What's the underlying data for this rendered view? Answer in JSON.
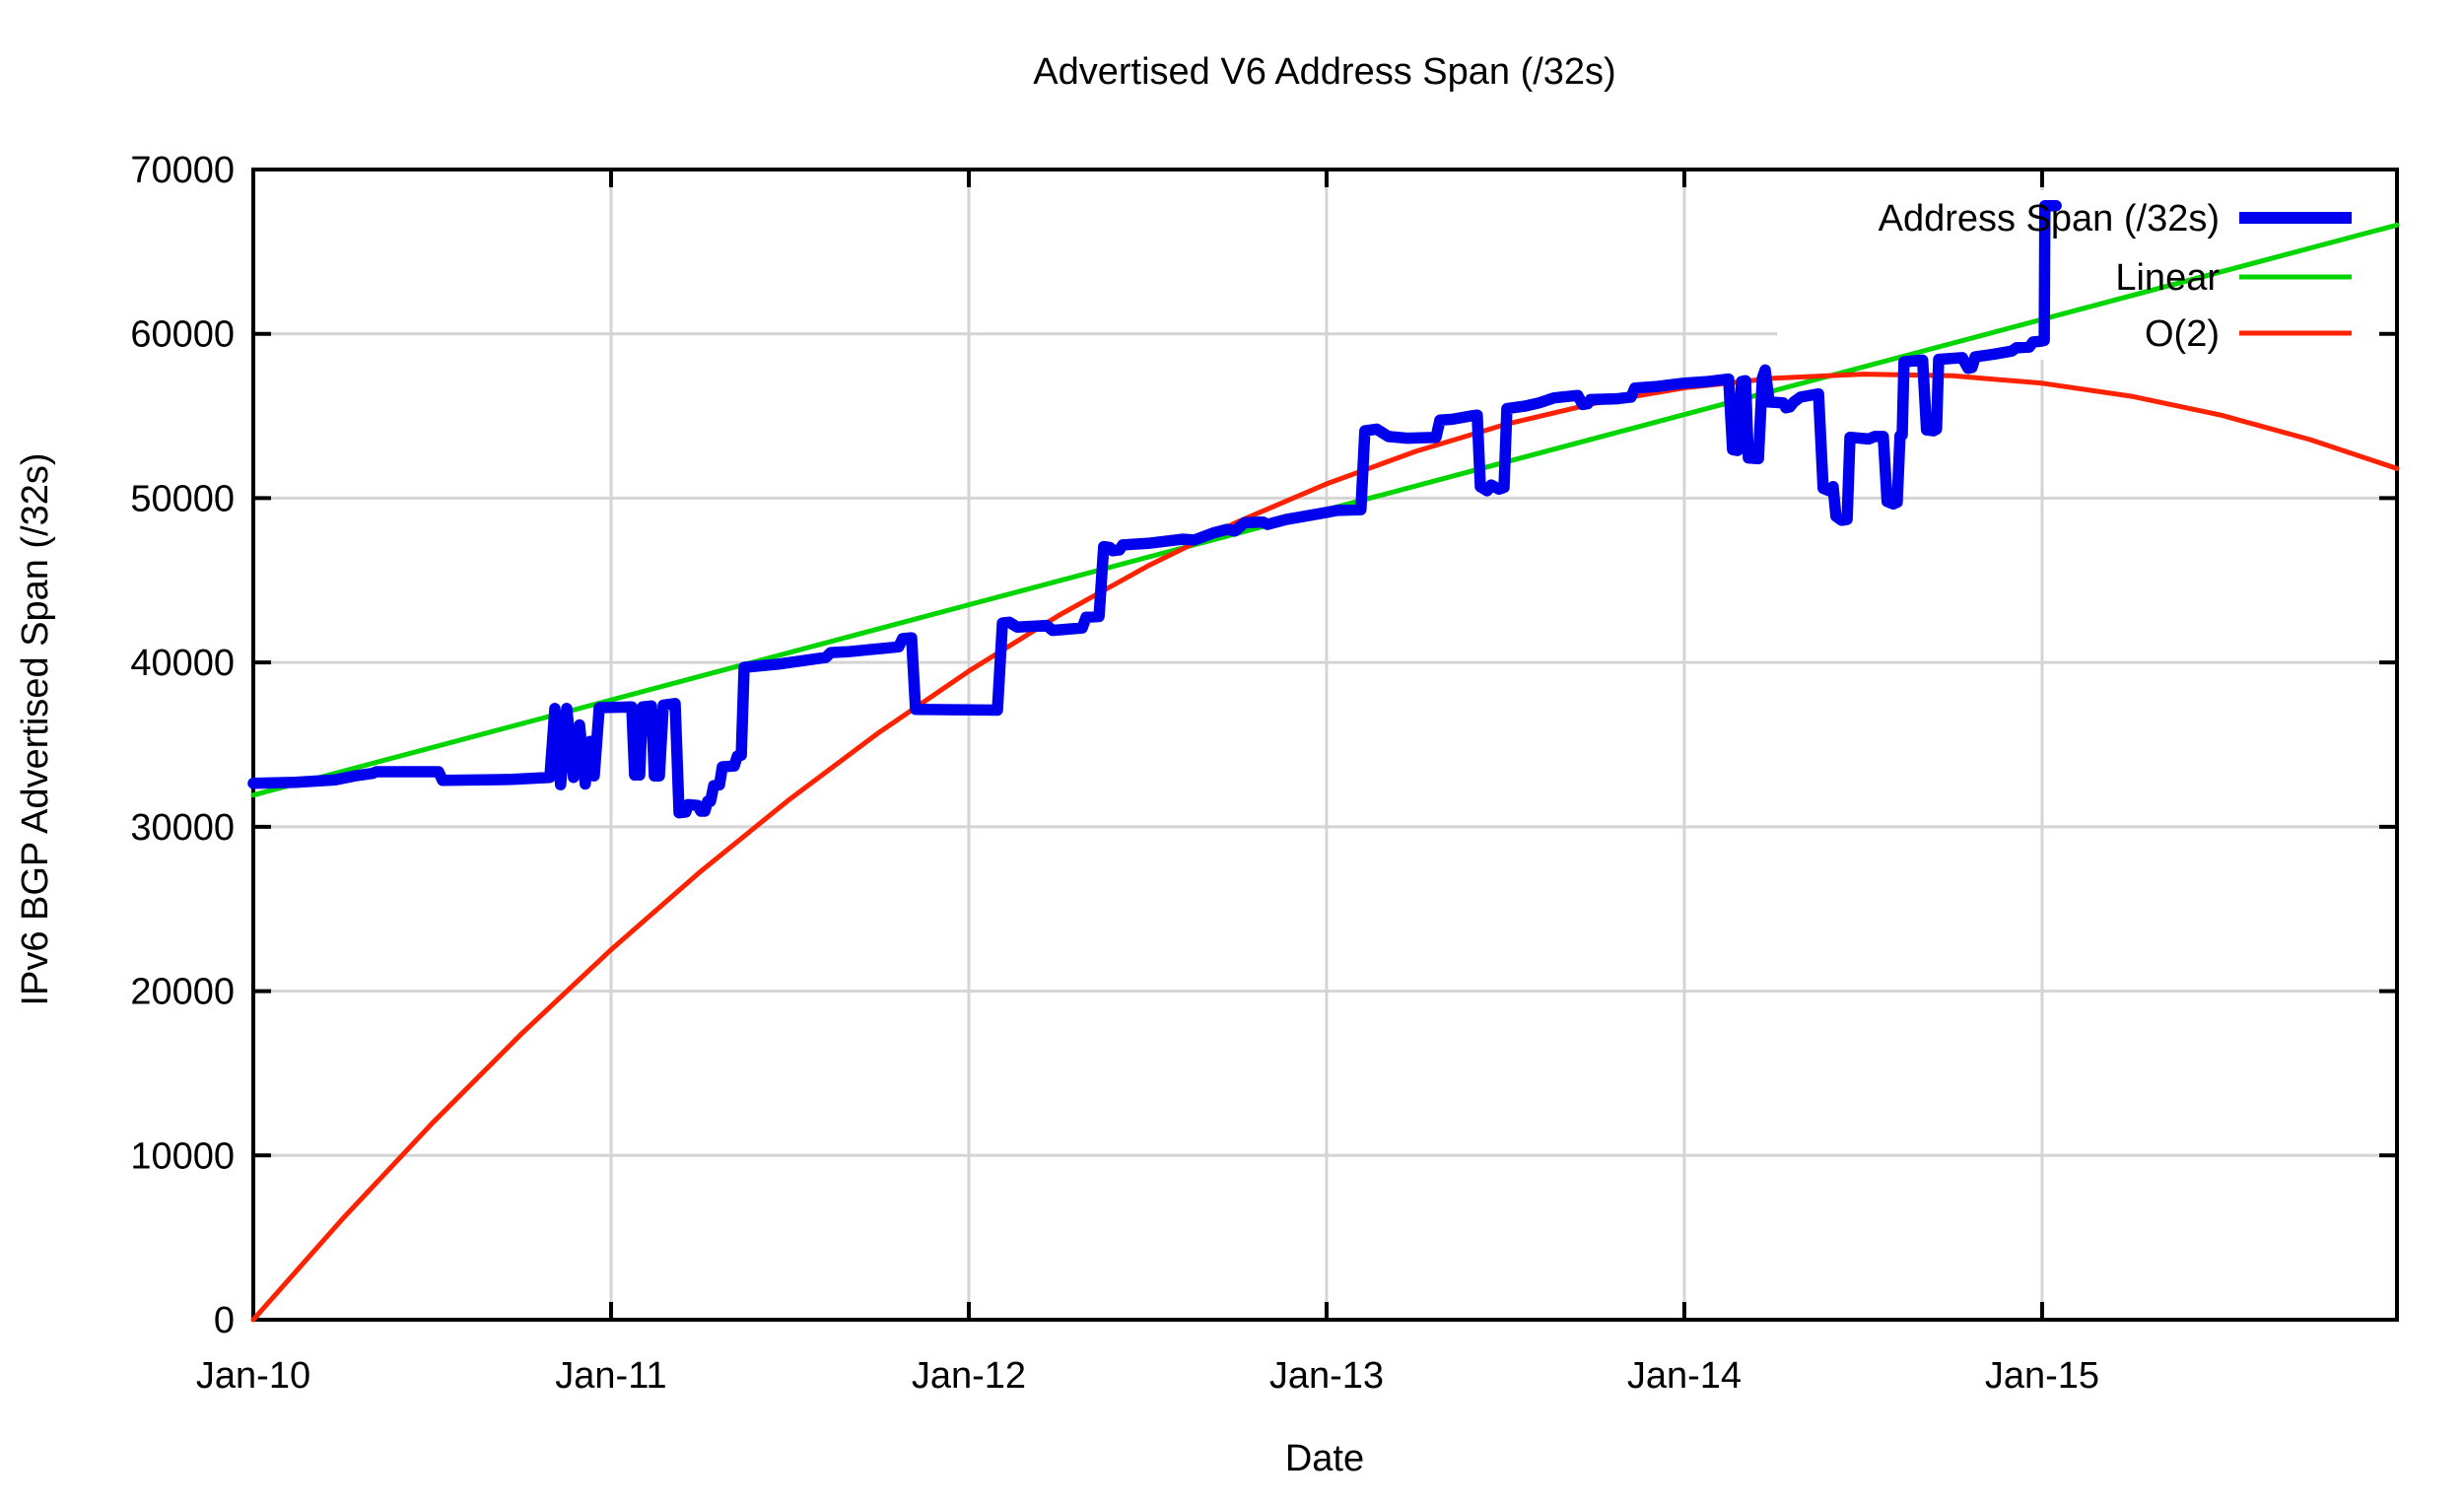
{
  "chart_data": {
    "type": "line",
    "title": "Advertised V6 Address Span (/32s)",
    "xlabel": "Date",
    "ylabel": "IPv6 BGP Advertised Span (/32s)",
    "xlim_years_since_jan2010": [
      0,
      5.992
    ],
    "ylim": [
      0,
      70000
    ],
    "grid": true,
    "legend_position": "top-right-inside",
    "x_ticks": [
      {
        "label": "Jan-10",
        "t": 0
      },
      {
        "label": "Jan-11",
        "t": 1
      },
      {
        "label": "Jan-12",
        "t": 2
      },
      {
        "label": "Jan-13",
        "t": 3
      },
      {
        "label": "Jan-14",
        "t": 4
      },
      {
        "label": "Jan-15",
        "t": 5
      }
    ],
    "y_ticks": [
      0,
      10000,
      20000,
      30000,
      40000,
      50000,
      60000,
      70000
    ],
    "colors": {
      "address_span": "#0000ee",
      "linear": "#00d500",
      "o2": "#ff2200",
      "grid": "#d4d4d4",
      "border": "#000000"
    },
    "series": [
      {
        "name": "Address Span (/32s)",
        "color": "#0000ee",
        "width": 11.5,
        "points": [
          [
            0.0,
            32650
          ],
          [
            0.118,
            32700
          ],
          [
            0.229,
            32850
          ],
          [
            0.284,
            33100
          ],
          [
            0.333,
            33250
          ],
          [
            0.344,
            33350
          ],
          [
            0.518,
            33350
          ],
          [
            0.529,
            32820
          ],
          [
            0.724,
            32880
          ],
          [
            0.829,
            33000
          ],
          [
            0.843,
            37200
          ],
          [
            0.859,
            32550
          ],
          [
            0.876,
            37200
          ],
          [
            0.895,
            33000
          ],
          [
            0.912,
            36200
          ],
          [
            0.928,
            32600
          ],
          [
            0.942,
            35200
          ],
          [
            0.953,
            33100
          ],
          [
            0.967,
            37250
          ],
          [
            1.058,
            37300
          ],
          [
            1.066,
            33150
          ],
          [
            1.08,
            33150
          ],
          [
            1.088,
            37300
          ],
          [
            1.113,
            37350
          ],
          [
            1.121,
            33100
          ],
          [
            1.135,
            33100
          ],
          [
            1.146,
            37400
          ],
          [
            1.179,
            37500
          ],
          [
            1.19,
            30850
          ],
          [
            1.209,
            30900
          ],
          [
            1.215,
            31350
          ],
          [
            1.242,
            31300
          ],
          [
            1.251,
            30950
          ],
          [
            1.262,
            30950
          ],
          [
            1.27,
            31550
          ],
          [
            1.278,
            31550
          ],
          [
            1.287,
            32500
          ],
          [
            1.303,
            32550
          ],
          [
            1.311,
            33650
          ],
          [
            1.344,
            33700
          ],
          [
            1.353,
            34300
          ],
          [
            1.364,
            34350
          ],
          [
            1.372,
            39700
          ],
          [
            1.468,
            39900
          ],
          [
            1.6,
            40300
          ],
          [
            1.614,
            40600
          ],
          [
            1.661,
            40650
          ],
          [
            1.804,
            40950
          ],
          [
            1.815,
            41450
          ],
          [
            1.84,
            41500
          ],
          [
            1.851,
            37150
          ],
          [
            2.08,
            37100
          ],
          [
            2.094,
            42400
          ],
          [
            2.113,
            42450
          ],
          [
            2.135,
            42150
          ],
          [
            2.218,
            42250
          ],
          [
            2.234,
            41950
          ],
          [
            2.317,
            42100
          ],
          [
            2.328,
            42750
          ],
          [
            2.364,
            42800
          ],
          [
            2.377,
            47050
          ],
          [
            2.394,
            47000
          ],
          [
            2.402,
            46800
          ],
          [
            2.421,
            46850
          ],
          [
            2.43,
            47150
          ],
          [
            2.501,
            47250
          ],
          [
            2.598,
            47500
          ],
          [
            2.631,
            47450
          ],
          [
            2.686,
            47900
          ],
          [
            2.722,
            48100
          ],
          [
            2.744,
            48000
          ],
          [
            2.771,
            48500
          ],
          [
            2.821,
            48550
          ],
          [
            2.835,
            48400
          ],
          [
            2.887,
            48700
          ],
          [
            2.978,
            49050
          ],
          [
            3.03,
            49250
          ],
          [
            3.096,
            49300
          ],
          [
            3.107,
            54100
          ],
          [
            3.14,
            54200
          ],
          [
            3.173,
            53750
          ],
          [
            3.226,
            53650
          ],
          [
            3.306,
            53700
          ],
          [
            3.317,
            54750
          ],
          [
            3.352,
            54800
          ],
          [
            3.402,
            55000
          ],
          [
            3.421,
            55050
          ],
          [
            3.43,
            50700
          ],
          [
            3.449,
            50450
          ],
          [
            3.46,
            50800
          ],
          [
            3.482,
            50550
          ],
          [
            3.496,
            50650
          ],
          [
            3.504,
            55450
          ],
          [
            3.554,
            55600
          ],
          [
            3.595,
            55800
          ],
          [
            3.636,
            56100
          ],
          [
            3.702,
            56250
          ],
          [
            3.716,
            55700
          ],
          [
            3.73,
            55750
          ],
          [
            3.738,
            56000
          ],
          [
            3.812,
            56050
          ],
          [
            3.851,
            56150
          ],
          [
            3.862,
            56700
          ],
          [
            3.925,
            56800
          ],
          [
            4.0,
            57000
          ],
          [
            4.066,
            57100
          ],
          [
            4.124,
            57250
          ],
          [
            4.135,
            52950
          ],
          [
            4.149,
            52900
          ],
          [
            4.16,
            57100
          ],
          [
            4.171,
            57150
          ],
          [
            4.179,
            52450
          ],
          [
            4.207,
            52400
          ],
          [
            4.218,
            57300
          ],
          [
            4.226,
            57800
          ],
          [
            4.237,
            55850
          ],
          [
            4.276,
            55800
          ],
          [
            4.284,
            55500
          ],
          [
            4.295,
            55550
          ],
          [
            4.306,
            55850
          ],
          [
            4.325,
            56150
          ],
          [
            4.375,
            56350
          ],
          [
            4.388,
            50600
          ],
          [
            4.405,
            50450
          ],
          [
            4.416,
            50700
          ],
          [
            4.424,
            48900
          ],
          [
            4.44,
            48650
          ],
          [
            4.455,
            48700
          ],
          [
            4.463,
            53700
          ],
          [
            4.515,
            53600
          ],
          [
            4.532,
            53750
          ],
          [
            4.556,
            53750
          ],
          [
            4.567,
            49800
          ],
          [
            4.584,
            49650
          ],
          [
            4.595,
            49750
          ],
          [
            4.603,
            53800
          ],
          [
            4.609,
            53850
          ],
          [
            4.614,
            58300
          ],
          [
            4.666,
            58400
          ],
          [
            4.677,
            54150
          ],
          [
            4.697,
            54100
          ],
          [
            4.705,
            54200
          ],
          [
            4.711,
            58450
          ],
          [
            4.777,
            58550
          ],
          [
            4.793,
            57900
          ],
          [
            4.804,
            57950
          ],
          [
            4.813,
            58600
          ],
          [
            4.862,
            58750
          ],
          [
            4.915,
            58950
          ],
          [
            4.928,
            59150
          ],
          [
            4.964,
            59200
          ],
          [
            4.975,
            59500
          ],
          [
            4.997,
            59550
          ],
          [
            5.006,
            59600
          ],
          [
            5.008,
            67800
          ],
          [
            5.039,
            67800
          ]
        ]
      },
      {
        "name": "Linear",
        "color": "#00d500",
        "width": 5,
        "points": [
          [
            0.0,
            31930
          ],
          [
            5.992,
            66620
          ]
        ]
      },
      {
        "name": "O(2)",
        "color": "#ff2200",
        "width": 5,
        "points": [
          [
            0.0,
            0
          ],
          [
            0.25,
            6150
          ],
          [
            0.5,
            11953
          ],
          [
            0.75,
            17408
          ],
          [
            1.0,
            22516
          ],
          [
            1.25,
            27277
          ],
          [
            1.5,
            31690
          ],
          [
            1.75,
            35755
          ],
          [
            2.0,
            39474
          ],
          [
            2.25,
            42844
          ],
          [
            2.5,
            45868
          ],
          [
            2.75,
            48543
          ],
          [
            3.0,
            50872
          ],
          [
            3.25,
            52853
          ],
          [
            3.5,
            54487
          ],
          [
            3.75,
            55773
          ],
          [
            4.0,
            56712
          ],
          [
            4.25,
            57304
          ],
          [
            4.5,
            57548
          ],
          [
            4.75,
            57444
          ],
          [
            5.0,
            56994
          ],
          [
            5.25,
            56195
          ],
          [
            5.5,
            55050
          ],
          [
            5.75,
            53556
          ],
          [
            5.992,
            51800
          ]
        ]
      }
    ]
  }
}
